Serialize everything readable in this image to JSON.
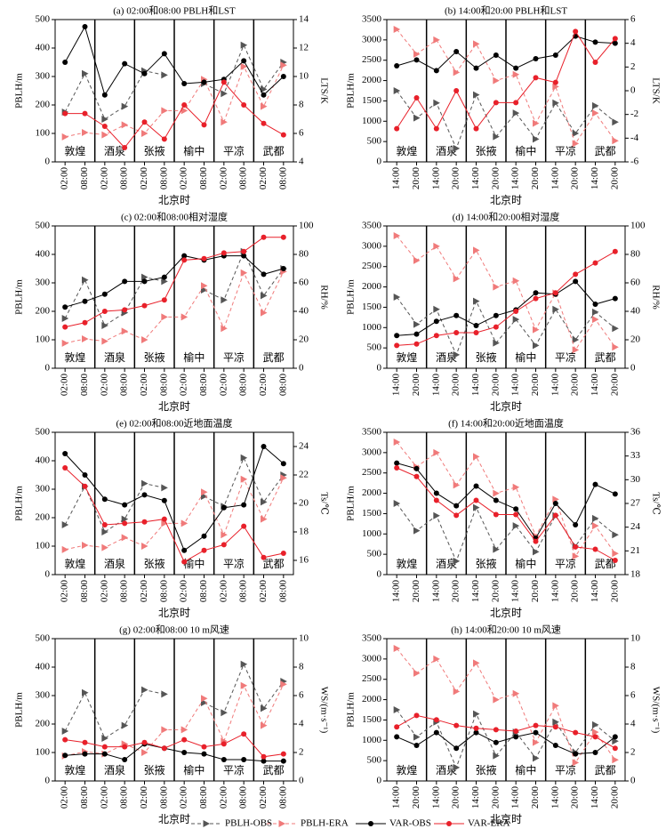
{
  "chart_data": [
    {
      "type": "line",
      "title": "(a) 02:00和08:00 PBLH和LST",
      "x_label": "北京时",
      "y_label": "PBLH/m",
      "y2_label": "LTS/K",
      "categories": [
        "02:00",
        "08:00",
        "02:00",
        "08:00",
        "02:00",
        "08:00",
        "02:00",
        "08:00",
        "02:00",
        "08:00",
        "02:00",
        "08:00"
      ],
      "stations": [
        "敦煌",
        "酒泉",
        "张掖",
        "榆中",
        "平凉",
        "武都"
      ],
      "ylim": [
        0,
        500
      ],
      "yticks": [
        0,
        100,
        200,
        300,
        400,
        500
      ],
      "y2lim": [
        4,
        14
      ],
      "y2ticks": [
        4,
        6,
        8,
        10,
        12,
        14
      ],
      "series": [
        {
          "name": "PBLH-OBS",
          "color": "#555555",
          "values": [
            175,
            310,
            150,
            195,
            320,
            305,
            null,
            275,
            240,
            410,
            255,
            350
          ]
        },
        {
          "name": "PBLH-ERA",
          "color": "#f07a7a",
          "values": [
            88,
            103,
            95,
            130,
            100,
            180,
            180,
            290,
            140,
            335,
            195,
            340
          ]
        },
        {
          "name": "VAR-OBS",
          "color": "#000000",
          "axis": "y2",
          "values": [
            11.0,
            13.5,
            8.7,
            10.9,
            10.2,
            11.6,
            9.5,
            9.6,
            9.8,
            11.1,
            8.7,
            10.0
          ]
        },
        {
          "name": "VAR-ERA",
          "color": "#e8202a",
          "axis": "y2",
          "values": [
            7.4,
            7.4,
            6.5,
            5.0,
            6.8,
            5.6,
            8.0,
            6.6,
            9.6,
            8.0,
            6.7,
            5.9
          ]
        }
      ]
    },
    {
      "type": "line",
      "title": "(b) 14:00和20:00 PBLH和LST",
      "x_label": "北京时",
      "y_label": "PBLH/m",
      "y2_label": "LTS/K",
      "categories": [
        "14:00",
        "20:00",
        "14:00",
        "20:00",
        "14:00",
        "20:00",
        "14:00",
        "20:00",
        "14:00",
        "20:00",
        "14:00",
        "20:00"
      ],
      "stations": [
        "敦煌",
        "酒泉",
        "张掖",
        "榆中",
        "平凉",
        "武都"
      ],
      "ylim": [
        0,
        3500
      ],
      "yticks": [
        0,
        500,
        1000,
        1500,
        2000,
        2500,
        3000,
        3500
      ],
      "y2lim": [
        -6,
        6
      ],
      "y2ticks": [
        -6,
        -4,
        -2,
        0,
        2,
        4,
        6
      ],
      "series": [
        {
          "name": "PBLH-OBS",
          "color": "#555555",
          "values": [
            1750,
            1080,
            1450,
            330,
            1650,
            620,
            1200,
            560,
            1450,
            700,
            1380,
            980
          ]
        },
        {
          "name": "PBLH-ERA",
          "color": "#f07a7a",
          "values": [
            3260,
            2650,
            3000,
            2200,
            2900,
            2000,
            2150,
            950,
            1850,
            450,
            1200,
            520
          ]
        },
        {
          "name": "VAR-OBS",
          "color": "#000000",
          "axis": "y2",
          "values": [
            2.1,
            2.6,
            1.7,
            3.3,
            1.9,
            3.0,
            1.9,
            2.7,
            3.0,
            4.6,
            4.1,
            4.0
          ]
        },
        {
          "name": "VAR-ERA",
          "color": "#e8202a",
          "axis": "y2",
          "values": [
            -3.2,
            -0.6,
            -3.2,
            0.0,
            -3.2,
            -1.0,
            -1.0,
            1.1,
            0.7,
            5.0,
            2.4,
            4.4
          ]
        }
      ]
    },
    {
      "type": "line",
      "title": "(c) 02:00和08:00相对湿度",
      "x_label": "北京时",
      "y_label": "PBLH/m",
      "y2_label": "RH/%",
      "categories": [
        "02:00",
        "08:00",
        "02:00",
        "08:00",
        "02:00",
        "08:00",
        "02:00",
        "08:00",
        "02:00",
        "08:00",
        "02:00",
        "08:00"
      ],
      "stations": [
        "敦煌",
        "酒泉",
        "张掖",
        "榆中",
        "平凉",
        "武都"
      ],
      "ylim": [
        0,
        500
      ],
      "yticks": [
        0,
        100,
        200,
        300,
        400,
        500
      ],
      "y2lim": [
        0,
        100
      ],
      "y2ticks": [
        0,
        20,
        40,
        60,
        80,
        100
      ],
      "series": [
        {
          "name": "PBLH-OBS",
          "color": "#555555",
          "values": [
            175,
            310,
            150,
            195,
            320,
            305,
            null,
            275,
            240,
            410,
            255,
            350
          ]
        },
        {
          "name": "PBLH-ERA",
          "color": "#f07a7a",
          "values": [
            88,
            103,
            95,
            130,
            100,
            180,
            180,
            290,
            140,
            335,
            195,
            340
          ]
        },
        {
          "name": "VAR-OBS",
          "color": "#000000",
          "axis": "y2",
          "values": [
            43,
            47,
            52,
            61,
            61,
            64,
            79,
            76,
            79,
            79,
            66,
            70
          ]
        },
        {
          "name": "VAR-ERA",
          "color": "#e8202a",
          "axis": "y2",
          "values": [
            29,
            32,
            40,
            41,
            44,
            48,
            76,
            77,
            81,
            82,
            92,
            92
          ]
        }
      ]
    },
    {
      "type": "line",
      "title": "(d) 14:00和20:00相对湿度",
      "x_label": "北京时",
      "y_label": "PBLH/m",
      "y2_label": "RH/%",
      "categories": [
        "14:00",
        "20:00",
        "14:00",
        "20:00",
        "14:00",
        "20:00",
        "14:00",
        "20:00",
        "14:00",
        "20:00",
        "14:00",
        "20:00"
      ],
      "stations": [
        "敦煌",
        "酒泉",
        "张掖",
        "榆中",
        "平凉",
        "武都"
      ],
      "ylim": [
        0,
        3500
      ],
      "yticks": [
        0,
        500,
        1000,
        1500,
        2000,
        2500,
        3000,
        3500
      ],
      "y2lim": [
        0,
        100
      ],
      "y2ticks": [
        0,
        20,
        40,
        60,
        80,
        100
      ],
      "series": [
        {
          "name": "PBLH-OBS",
          "color": "#555555",
          "values": [
            1750,
            1080,
            1450,
            330,
            1650,
            620,
            1200,
            560,
            1450,
            700,
            1380,
            980
          ]
        },
        {
          "name": "PBLH-ERA",
          "color": "#f07a7a",
          "values": [
            3260,
            2650,
            3000,
            2200,
            2900,
            2000,
            2150,
            950,
            1850,
            450,
            1200,
            520
          ]
        },
        {
          "name": "VAR-OBS",
          "color": "#000000",
          "axis": "y2",
          "values": [
            23,
            24,
            33,
            37,
            30,
            37,
            41,
            53,
            52,
            61,
            45,
            49
          ]
        },
        {
          "name": "VAR-ERA",
          "color": "#e8202a",
          "axis": "y2",
          "values": [
            16,
            17,
            23,
            25,
            25,
            29,
            40,
            49,
            53,
            66,
            74,
            82
          ]
        }
      ]
    },
    {
      "type": "line",
      "title": "(e) 02:00和08:00近地面温度",
      "x_label": "北京时",
      "y_label": "PBLH/m",
      "y2_label": "Ts/℃",
      "categories": [
        "02:00",
        "08:00",
        "02:00",
        "08:00",
        "02:00",
        "08:00",
        "02:00",
        "08:00",
        "02:00",
        "08:00",
        "02:00",
        "08:00"
      ],
      "stations": [
        "敦煌",
        "酒泉",
        "张掖",
        "榆中",
        "平凉",
        "武都"
      ],
      "ylim": [
        0,
        500
      ],
      "yticks": [
        0,
        100,
        200,
        300,
        400,
        500
      ],
      "y2lim": [
        15,
        25
      ],
      "y2ticks": [
        16,
        18,
        20,
        22,
        24
      ],
      "series": [
        {
          "name": "PBLH-OBS",
          "color": "#555555",
          "values": [
            175,
            310,
            150,
            195,
            320,
            305,
            null,
            275,
            240,
            410,
            255,
            350
          ]
        },
        {
          "name": "PBLH-ERA",
          "color": "#f07a7a",
          "values": [
            88,
            103,
            95,
            130,
            100,
            180,
            180,
            290,
            140,
            335,
            195,
            340
          ]
        },
        {
          "name": "VAR-OBS",
          "color": "#000000",
          "axis": "y2",
          "values": [
            23.5,
            22.0,
            20.3,
            19.9,
            20.6,
            20.2,
            16.7,
            17.7,
            19.7,
            19.9,
            24.0,
            22.8
          ]
        },
        {
          "name": "VAR-ERA",
          "color": "#e8202a",
          "axis": "y2",
          "values": [
            22.5,
            21.2,
            18.5,
            18.6,
            18.7,
            18.9,
            15.9,
            16.7,
            17.1,
            18.4,
            16.2,
            16.5
          ]
        }
      ]
    },
    {
      "type": "line",
      "title": "(f) 14:00和20:00近地面温度",
      "x_label": "北京时",
      "y_label": "PBLH/m",
      "y2_label": "Ts/℃",
      "categories": [
        "14:00",
        "20:00",
        "14:00",
        "20:00",
        "14:00",
        "20:00",
        "14:00",
        "20:00",
        "14:00",
        "20:00",
        "14:00",
        "20:00"
      ],
      "stations": [
        "敦煌",
        "酒泉",
        "张掖",
        "榆中",
        "平凉",
        "武都"
      ],
      "ylim": [
        0,
        3500
      ],
      "yticks": [
        0,
        500,
        1000,
        1500,
        2000,
        2500,
        3000,
        3500
      ],
      "y2lim": [
        18,
        36
      ],
      "y2ticks": [
        18,
        21,
        24,
        27,
        30,
        33,
        36
      ],
      "series": [
        {
          "name": "PBLH-OBS",
          "color": "#555555",
          "values": [
            1750,
            1080,
            1450,
            330,
            1650,
            620,
            1200,
            560,
            1450,
            700,
            1380,
            980
          ]
        },
        {
          "name": "PBLH-ERA",
          "color": "#f07a7a",
          "values": [
            3260,
            2650,
            3000,
            2200,
            2900,
            2000,
            2150,
            950,
            1850,
            450,
            1200,
            520
          ]
        },
        {
          "name": "VAR-OBS",
          "color": "#000000",
          "axis": "y2",
          "values": [
            32.1,
            31.4,
            28.3,
            26.7,
            29.2,
            27.4,
            26.3,
            22.6,
            27.0,
            24.3,
            29.4,
            28.2
          ]
        },
        {
          "name": "VAR-ERA",
          "color": "#e8202a",
          "axis": "y2",
          "values": [
            31.5,
            30.4,
            27.4,
            25.5,
            27.4,
            25.6,
            25.6,
            22.2,
            25.5,
            21.5,
            21.2,
            19.8
          ]
        }
      ]
    },
    {
      "type": "line",
      "title": "(g) 02:00和08:00 10 m风速",
      "x_label": "北京时",
      "y_label": "PBLH/m",
      "y2_label": "WS/(m·s⁻¹)",
      "categories": [
        "02:00",
        "08:00",
        "02:00",
        "08:00",
        "02:00",
        "08:00",
        "02:00",
        "08:00",
        "02:00",
        "08:00",
        "02:00",
        "08:00"
      ],
      "stations": [
        "敦煌",
        "酒泉",
        "张掖",
        "榆中",
        "平凉",
        "武都"
      ],
      "ylim": [
        0,
        500
      ],
      "yticks": [
        0,
        100,
        200,
        300,
        400,
        500
      ],
      "y2lim": [
        0,
        10
      ],
      "y2ticks": [
        0,
        2,
        4,
        6,
        8,
        10
      ],
      "series": [
        {
          "name": "PBLH-OBS",
          "color": "#555555",
          "values": [
            175,
            310,
            150,
            195,
            320,
            305,
            null,
            275,
            240,
            410,
            255,
            350
          ]
        },
        {
          "name": "PBLH-ERA",
          "color": "#f07a7a",
          "values": [
            88,
            103,
            95,
            130,
            100,
            180,
            180,
            290,
            140,
            335,
            195,
            340
          ]
        },
        {
          "name": "VAR-OBS",
          "color": "#000000",
          "axis": "y2",
          "values": [
            1.8,
            1.9,
            1.9,
            1.5,
            2.6,
            2.3,
            2.0,
            1.9,
            1.5,
            1.5,
            1.4,
            1.4
          ]
        },
        {
          "name": "VAR-ERA",
          "color": "#e8202a",
          "axis": "y2",
          "values": [
            2.9,
            2.7,
            2.4,
            2.4,
            2.7,
            2.3,
            2.9,
            2.4,
            2.6,
            3.3,
            1.7,
            1.9
          ]
        }
      ]
    },
    {
      "type": "line",
      "title": "(h) 14:00和20:00 10 m风速",
      "x_label": "北京时",
      "y_label": "PBLH/m",
      "y2_label": "WS/(m·s⁻¹)",
      "categories": [
        "14:00",
        "20:00",
        "14:00",
        "20:00",
        "14:00",
        "20:00",
        "14:00",
        "20:00",
        "14:00",
        "20:00",
        "14:00",
        "20:00"
      ],
      "stations": [
        "敦煌",
        "酒泉",
        "张掖",
        "榆中",
        "平凉",
        "武都"
      ],
      "ylim": [
        0,
        3500
      ],
      "yticks": [
        0,
        500,
        1000,
        1500,
        2000,
        2500,
        3000,
        3500
      ],
      "y2lim": [
        0,
        10
      ],
      "y2ticks": [
        0,
        2,
        4,
        6,
        8,
        10
      ],
      "series": [
        {
          "name": "PBLH-OBS",
          "color": "#555555",
          "values": [
            1750,
            1080,
            1450,
            330,
            1650,
            620,
            1200,
            560,
            1450,
            700,
            1380,
            980
          ]
        },
        {
          "name": "PBLH-ERA",
          "color": "#f07a7a",
          "values": [
            3260,
            2650,
            3000,
            2200,
            2900,
            2000,
            2150,
            950,
            1850,
            450,
            1200,
            520
          ]
        },
        {
          "name": "VAR-OBS",
          "color": "#000000",
          "axis": "y2",
          "values": [
            3.1,
            2.5,
            3.4,
            2.3,
            3.4,
            2.7,
            3.1,
            3.4,
            2.5,
            1.9,
            2.0,
            3.1
          ]
        },
        {
          "name": "VAR-ERA",
          "color": "#e8202a",
          "axis": "y2",
          "values": [
            3.8,
            4.6,
            4.3,
            3.9,
            3.7,
            3.6,
            3.5,
            3.9,
            3.8,
            3.4,
            3.1,
            2.3
          ]
        }
      ]
    }
  ]
}
